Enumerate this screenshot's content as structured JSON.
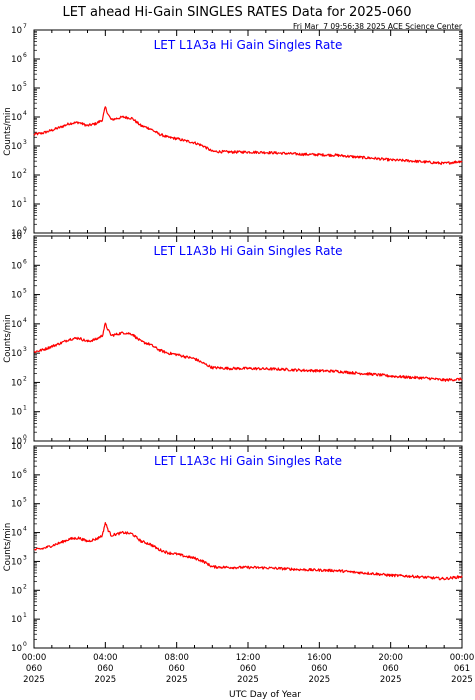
{
  "figure": {
    "title": "LET ahead Hi-Gain SINGLES RATES Data for 2025-060",
    "timestamp": "Fri Mar  7 09:56:38 2025 ACE Science Center",
    "xlabel": "UTC Day of Year"
  },
  "colors": {
    "series": "#ff0000",
    "panel_title": "#0000ff",
    "axes": "#000000"
  },
  "chart_data": [
    {
      "type": "line",
      "title": "LET L1A3a Hi Gain Singles Rate",
      "ylabel": "Counts/min",
      "yscale": "log",
      "ylim": [
        1,
        10000000
      ],
      "ytick_labels": [
        {
          "base": "10",
          "exp": "0"
        },
        {
          "base": "10",
          "exp": "1"
        },
        {
          "base": "10",
          "exp": "2"
        },
        {
          "base": "10",
          "exp": "3"
        },
        {
          "base": "10",
          "exp": "4"
        },
        {
          "base": "10",
          "exp": "5"
        },
        {
          "base": "10",
          "exp": "6"
        },
        {
          "base": "10",
          "exp": "7"
        }
      ],
      "xlim": [
        "00:00",
        "24:00"
      ],
      "series": [
        {
          "x": [
            "00:00",
            "00:30",
            "01:00",
            "01:30",
            "02:00",
            "02:30",
            "03:00",
            "03:30",
            "03:50",
            "04:00",
            "04:10",
            "04:20",
            "04:30",
            "05:00",
            "05:30",
            "06:00",
            "06:30",
            "07:00",
            "07:30",
            "08:00",
            "08:30",
            "09:00",
            "09:30",
            "10:00",
            "11:00",
            "12:00",
            "13:00",
            "14:00",
            "15:00",
            "16:00",
            "17:00",
            "18:00",
            "19:00",
            "20:00",
            "21:00",
            "22:00",
            "23:00",
            "24:00"
          ],
          "y": [
            2500,
            2800,
            3500,
            4500,
            6000,
            6500,
            5000,
            6000,
            8000,
            22000,
            12000,
            8000,
            8500,
            10000,
            9000,
            5000,
            4000,
            2600,
            2000,
            1800,
            1500,
            1300,
            1000,
            650,
            620,
            620,
            600,
            560,
            520,
            500,
            480,
            420,
            380,
            330,
            310,
            280,
            250,
            300
          ]
        }
      ]
    },
    {
      "type": "line",
      "title": "LET L1A3b Hi Gain Singles Rate",
      "ylabel": "Counts/min",
      "yscale": "log",
      "ylim": [
        1,
        10000000
      ],
      "ytick_labels": [
        {
          "base": "10",
          "exp": "0"
        },
        {
          "base": "10",
          "exp": "1"
        },
        {
          "base": "10",
          "exp": "2"
        },
        {
          "base": "10",
          "exp": "3"
        },
        {
          "base": "10",
          "exp": "4"
        },
        {
          "base": "10",
          "exp": "5"
        },
        {
          "base": "10",
          "exp": "6"
        },
        {
          "base": "10",
          "exp": "7"
        }
      ],
      "xlim": [
        "00:00",
        "24:00"
      ],
      "series": [
        {
          "x": [
            "00:00",
            "00:30",
            "01:00",
            "01:30",
            "02:00",
            "02:30",
            "03:00",
            "03:30",
            "03:50",
            "04:00",
            "04:10",
            "04:20",
            "04:30",
            "05:00",
            "05:30",
            "06:00",
            "06:30",
            "07:00",
            "07:30",
            "08:00",
            "08:30",
            "09:00",
            "09:30",
            "10:00",
            "11:00",
            "12:00",
            "13:00",
            "14:00",
            "15:00",
            "16:00",
            "17:00",
            "18:00",
            "19:00",
            "20:00",
            "21:00",
            "22:00",
            "23:00",
            "24:00"
          ],
          "y": [
            1100,
            1300,
            1700,
            2200,
            3000,
            3300,
            2500,
            3000,
            4000,
            10000,
            6000,
            4000,
            4200,
            5000,
            4500,
            2500,
            2000,
            1300,
            1000,
            900,
            750,
            650,
            450,
            320,
            300,
            300,
            290,
            280,
            260,
            250,
            240,
            210,
            190,
            165,
            150,
            140,
            120,
            130
          ]
        }
      ]
    },
    {
      "type": "line",
      "title": "LET L1A3c Hi Gain Singles Rate",
      "ylabel": "Counts/min",
      "yscale": "log",
      "ylim": [
        1,
        10000000
      ],
      "ytick_labels": [
        {
          "base": "10",
          "exp": "0"
        },
        {
          "base": "10",
          "exp": "1"
        },
        {
          "base": "10",
          "exp": "2"
        },
        {
          "base": "10",
          "exp": "3"
        },
        {
          "base": "10",
          "exp": "4"
        },
        {
          "base": "10",
          "exp": "5"
        },
        {
          "base": "10",
          "exp": "6"
        },
        {
          "base": "10",
          "exp": "7"
        }
      ],
      "xlim": [
        "00:00",
        "24:00"
      ],
      "series": [
        {
          "x": [
            "00:00",
            "00:30",
            "01:00",
            "01:30",
            "02:00",
            "02:30",
            "03:00",
            "03:30",
            "03:50",
            "04:00",
            "04:10",
            "04:20",
            "04:30",
            "05:00",
            "05:30",
            "06:00",
            "06:30",
            "07:00",
            "07:30",
            "08:00",
            "08:30",
            "09:00",
            "09:30",
            "10:00",
            "11:00",
            "12:00",
            "13:00",
            "14:00",
            "15:00",
            "16:00",
            "17:00",
            "18:00",
            "19:00",
            "20:00",
            "21:00",
            "22:00",
            "23:00",
            "24:00"
          ],
          "y": [
            2500,
            2800,
            3500,
            4500,
            6000,
            6500,
            5000,
            6000,
            8000,
            22000,
            12000,
            8000,
            8500,
            10000,
            9000,
            5000,
            4000,
            2600,
            2000,
            1800,
            1500,
            1300,
            1000,
            650,
            620,
            620,
            600,
            560,
            520,
            500,
            480,
            420,
            380,
            330,
            310,
            280,
            250,
            300
          ]
        }
      ]
    }
  ],
  "xaxis": {
    "ticks": [
      {
        "time": "00:00",
        "doy": "060",
        "year": "2025"
      },
      {
        "time": "04:00",
        "doy": "060",
        "year": "2025"
      },
      {
        "time": "08:00",
        "doy": "060",
        "year": "2025"
      },
      {
        "time": "12:00",
        "doy": "060",
        "year": "2025"
      },
      {
        "time": "16:00",
        "doy": "060",
        "year": "2025"
      },
      {
        "time": "20:00",
        "doy": "060",
        "year": "2025"
      },
      {
        "time": "00:00",
        "doy": "061",
        "year": "2025"
      }
    ]
  }
}
